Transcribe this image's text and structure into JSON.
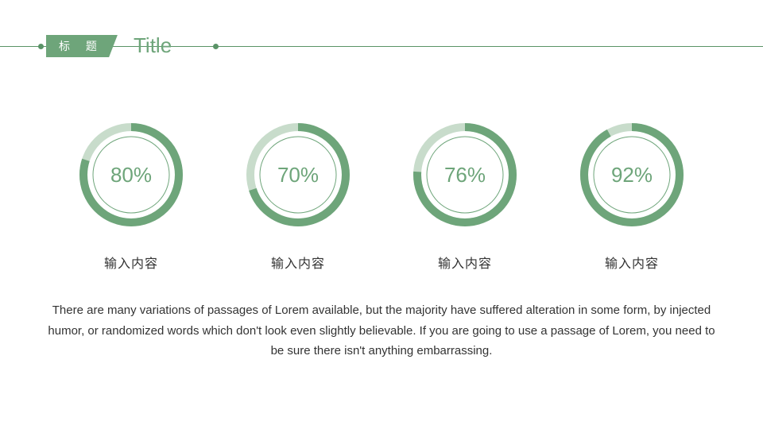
{
  "header": {
    "tag_label": "标 题",
    "title": "Title",
    "line_color": "#5a9367",
    "tag_bg": "#6ea57a",
    "title_color": "#6ea57a"
  },
  "gauges": {
    "ring_color": "#6ea57a",
    "ring_track_color": "#c8dccb",
    "inner_circle_stroke": "#6ea57a",
    "value_color": "#6ea57a",
    "ring_stroke_width": 10,
    "inner_stroke_width": 1,
    "radius_outer": 60,
    "radius_inner": 48,
    "size": 140,
    "items": [
      {
        "percent": 80,
        "value_text": "80%",
        "label": "输入内容"
      },
      {
        "percent": 70,
        "value_text": "70%",
        "label": "输入内容"
      },
      {
        "percent": 76,
        "value_text": "76%",
        "label": "输入内容"
      },
      {
        "percent": 92,
        "value_text": "92%",
        "label": "输入内容"
      }
    ]
  },
  "body": {
    "text": "There are many variations of passages of Lorem available, but the majority have suffered alteration in some form, by injected humor, or randomized words which don't look even slightly believable. If you are going to use a passage of Lorem, you need to be sure there isn't anything embarrassing."
  }
}
